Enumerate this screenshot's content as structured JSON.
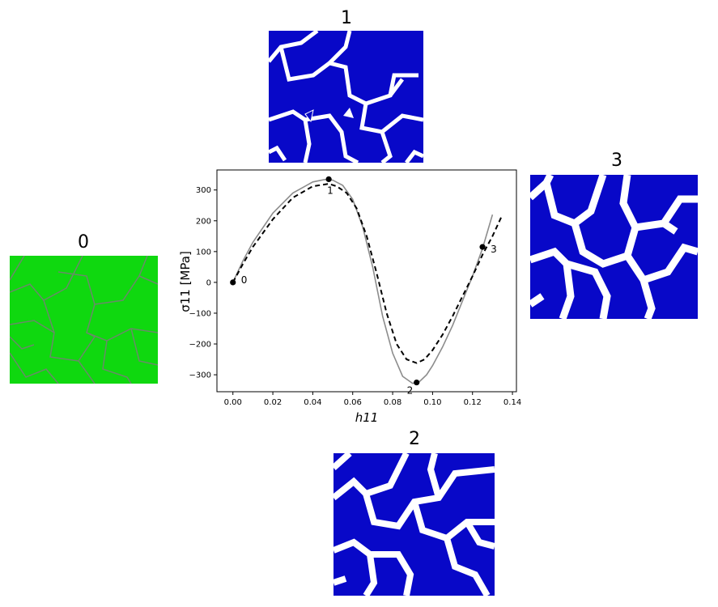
{
  "colors": {
    "initial_state": "#0fd80f",
    "deformed_state": "#0808c8",
    "initial_edge": "#6a8a6a",
    "gap": "#ffffff",
    "curve_solid": "#8c8c8c",
    "curve_dashed": "#000000"
  },
  "states": [
    {
      "id": "0",
      "label": "0",
      "fill": "#0fd80f"
    },
    {
      "id": "1",
      "label": "1",
      "fill": "#0808c8"
    },
    {
      "id": "2",
      "label": "2",
      "fill": "#0808c8"
    },
    {
      "id": "3",
      "label": "3",
      "fill": "#0808c8"
    }
  ],
  "chart_data": {
    "type": "line",
    "xlabel": "h11",
    "ylabel": "σ11 [MPa]",
    "xlim": [
      -0.008,
      0.142
    ],
    "ylim": [
      -355,
      365
    ],
    "xticks": [
      0.0,
      0.02,
      0.04,
      0.06,
      0.08,
      0.1,
      0.12,
      0.14
    ],
    "xtick_labels": [
      "0.00",
      "0.02",
      "0.04",
      "0.06",
      "0.08",
      "0.10",
      "0.12",
      "0.14"
    ],
    "yticks": [
      -300,
      -200,
      -100,
      0,
      100,
      200,
      300
    ],
    "ytick_labels": [
      "−300",
      "−200",
      "−100",
      "0",
      "100",
      "200",
      "300"
    ],
    "series": [
      {
        "style": "solid",
        "x": [
          0,
          0.005,
          0.01,
          0.02,
          0.03,
          0.04,
          0.046,
          0.05,
          0.055,
          0.06,
          0.065,
          0.07,
          0.075,
          0.08,
          0.085,
          0.09,
          0.093,
          0.097,
          0.1,
          0.105,
          0.11,
          0.115,
          0.12,
          0.125,
          0.13
        ],
        "y": [
          0,
          70,
          130,
          225,
          290,
          326,
          334,
          332,
          315,
          270,
          180,
          50,
          -110,
          -230,
          -305,
          -328,
          -325,
          -300,
          -270,
          -210,
          -140,
          -60,
          20,
          110,
          220
        ]
      },
      {
        "style": "dashed",
        "x": [
          0,
          0.005,
          0.01,
          0.02,
          0.03,
          0.04,
          0.048,
          0.052,
          0.057,
          0.062,
          0.067,
          0.072,
          0.077,
          0.082,
          0.087,
          0.092,
          0.096,
          0.1,
          0.105,
          0.11,
          0.115,
          0.12,
          0.125,
          0.13,
          0.135
        ],
        "y": [
          0,
          60,
          115,
          205,
          275,
          312,
          320,
          312,
          290,
          240,
          150,
          30,
          -100,
          -200,
          -250,
          -262,
          -250,
          -220,
          -170,
          -110,
          -45,
          20,
          90,
          150,
          220
        ]
      }
    ],
    "markers": [
      {
        "label": "0",
        "x": 0.0,
        "y": 0
      },
      {
        "label": "1",
        "x": 0.048,
        "y": 335
      },
      {
        "label": "2",
        "x": 0.092,
        "y": -325
      },
      {
        "label": "3",
        "x": 0.125,
        "y": 115
      }
    ]
  }
}
